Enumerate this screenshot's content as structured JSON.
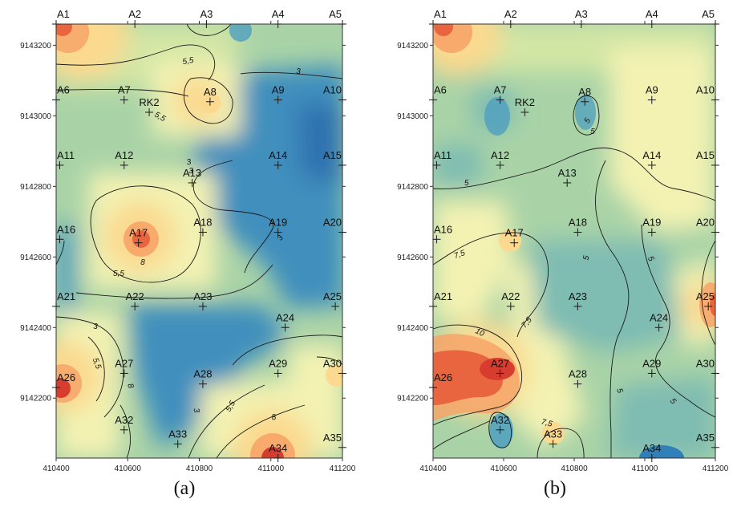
{
  "panels": [
    {
      "caption": "(a)",
      "x_ticks": [
        "410400",
        "410600",
        "410800",
        "411000",
        "411200"
      ],
      "y_ticks": [
        "9143200",
        "9143000",
        "9142800",
        "9142600",
        "9142400",
        "9142200"
      ],
      "wells": [
        {
          "label": "A1",
          "x": 410400,
          "y": 9143260
        },
        {
          "label": "A2",
          "x": 410620,
          "y": 9143260
        },
        {
          "label": "A3",
          "x": 410820,
          "y": 9143260
        },
        {
          "label": "A4",
          "x": 411020,
          "y": 9143260
        },
        {
          "label": "A5",
          "x": 411200,
          "y": 9143260
        },
        {
          "label": "A6",
          "x": 410400,
          "y": 9143045
        },
        {
          "label": "A7",
          "x": 410590,
          "y": 9143045
        },
        {
          "label": "RK2",
          "x": 410660,
          "y": 9143010
        },
        {
          "label": "A8",
          "x": 410830,
          "y": 9143040
        },
        {
          "label": "A9",
          "x": 411020,
          "y": 9143045
        },
        {
          "label": "A10",
          "x": 411200,
          "y": 9143045
        },
        {
          "label": "A11",
          "x": 410410,
          "y": 9142860
        },
        {
          "label": "A12",
          "x": 410590,
          "y": 9142860
        },
        {
          "label": "A13",
          "x": 410780,
          "y": 9142810
        },
        {
          "label": "A14",
          "x": 411020,
          "y": 9142860
        },
        {
          "label": "A15",
          "x": 411200,
          "y": 9142860
        },
        {
          "label": "A16",
          "x": 410410,
          "y": 9142650
        },
        {
          "label": "A17",
          "x": 410630,
          "y": 9142640
        },
        {
          "label": "A18",
          "x": 410810,
          "y": 9142670
        },
        {
          "label": "A19",
          "x": 411020,
          "y": 9142670
        },
        {
          "label": "A20",
          "x": 411200,
          "y": 9142670
        },
        {
          "label": "A21",
          "x": 410400,
          "y": 9142460
        },
        {
          "label": "A22",
          "x": 410620,
          "y": 9142460
        },
        {
          "label": "A23",
          "x": 410810,
          "y": 9142460
        },
        {
          "label": "A24",
          "x": 411040,
          "y": 9142400
        },
        {
          "label": "A25",
          "x": 411180,
          "y": 9142460
        },
        {
          "label": "A26",
          "x": 410400,
          "y": 9142230
        },
        {
          "label": "A27",
          "x": 410590,
          "y": 9142270
        },
        {
          "label": "A28",
          "x": 410810,
          "y": 9142240
        },
        {
          "label": "A29",
          "x": 411020,
          "y": 9142270
        },
        {
          "label": "A30",
          "x": 411200,
          "y": 9142270
        },
        {
          "label": "A32",
          "x": 410590,
          "y": 9142110
        },
        {
          "label": "A33",
          "x": 410740,
          "y": 9142070
        },
        {
          "label": "A34",
          "x": 411020,
          "y": 9142030
        },
        {
          "label": "A35",
          "x": 411200,
          "y": 9142060
        }
      ],
      "contour_labels": [
        "5,5",
        "3",
        "5,5",
        "3",
        "3",
        "3",
        "8",
        "5,5",
        "3",
        "5,5",
        "8",
        "3",
        "5,5",
        "8"
      ]
    },
    {
      "caption": "(b)",
      "x_ticks": [
        "410400",
        "410600",
        "410800",
        "411000",
        "411200"
      ],
      "y_ticks": [
        "9143200",
        "9143000",
        "9142800",
        "9142600",
        "9142400",
        "9142200"
      ],
      "wells": [
        {
          "label": "A1",
          "x": 410400,
          "y": 9143260
        },
        {
          "label": "A2",
          "x": 410620,
          "y": 9143260
        },
        {
          "label": "A3",
          "x": 410820,
          "y": 9143260
        },
        {
          "label": "A4",
          "x": 411020,
          "y": 9143260
        },
        {
          "label": "A5",
          "x": 411200,
          "y": 9143260
        },
        {
          "label": "A6",
          "x": 410400,
          "y": 9143045
        },
        {
          "label": "A7",
          "x": 410590,
          "y": 9143045
        },
        {
          "label": "RK2",
          "x": 410660,
          "y": 9143010
        },
        {
          "label": "A8",
          "x": 410830,
          "y": 9143040
        },
        {
          "label": "A9",
          "x": 411020,
          "y": 9143045
        },
        {
          "label": "A10",
          "x": 411200,
          "y": 9143045
        },
        {
          "label": "A11",
          "x": 410410,
          "y": 9142860
        },
        {
          "label": "A12",
          "x": 410590,
          "y": 9142860
        },
        {
          "label": "A13",
          "x": 410780,
          "y": 9142810
        },
        {
          "label": "A14",
          "x": 411020,
          "y": 9142860
        },
        {
          "label": "A15",
          "x": 411200,
          "y": 9142860
        },
        {
          "label": "A16",
          "x": 410410,
          "y": 9142650
        },
        {
          "label": "A17",
          "x": 410630,
          "y": 9142640
        },
        {
          "label": "A18",
          "x": 410810,
          "y": 9142670
        },
        {
          "label": "A19",
          "x": 411020,
          "y": 9142670
        },
        {
          "label": "A20",
          "x": 411200,
          "y": 9142670
        },
        {
          "label": "A21",
          "x": 410400,
          "y": 9142460
        },
        {
          "label": "A22",
          "x": 410620,
          "y": 9142460
        },
        {
          "label": "A23",
          "x": 410810,
          "y": 9142460
        },
        {
          "label": "A24",
          "x": 411040,
          "y": 9142400
        },
        {
          "label": "A25",
          "x": 411180,
          "y": 9142460
        },
        {
          "label": "A26",
          "x": 410400,
          "y": 9142230
        },
        {
          "label": "A27",
          "x": 410590,
          "y": 9142270
        },
        {
          "label": "A28",
          "x": 410810,
          "y": 9142240
        },
        {
          "label": "A29",
          "x": 411020,
          "y": 9142270
        },
        {
          "label": "A30",
          "x": 411200,
          "y": 9142270
        },
        {
          "label": "A32",
          "x": 410590,
          "y": 9142110
        },
        {
          "label": "A33",
          "x": 410740,
          "y": 9142070
        },
        {
          "label": "A34",
          "x": 411020,
          "y": 9142030
        },
        {
          "label": "A35",
          "x": 411200,
          "y": 9142060
        }
      ],
      "contour_labels": [
        "5",
        "5",
        "5",
        "7,5",
        "5",
        "5",
        "7,5",
        "10",
        "7,5",
        "5",
        "5"
      ]
    }
  ],
  "colors": {
    "frame": "#333333",
    "contour": "#1a1a1a",
    "ramp": [
      "#2f7fb8",
      "#4f9fbf",
      "#7fbcb2",
      "#a9d3a7",
      "#d3e6a4",
      "#f3f2b2",
      "#fbd98f",
      "#f6a468",
      "#e8653f",
      "#d73d2f"
    ]
  }
}
